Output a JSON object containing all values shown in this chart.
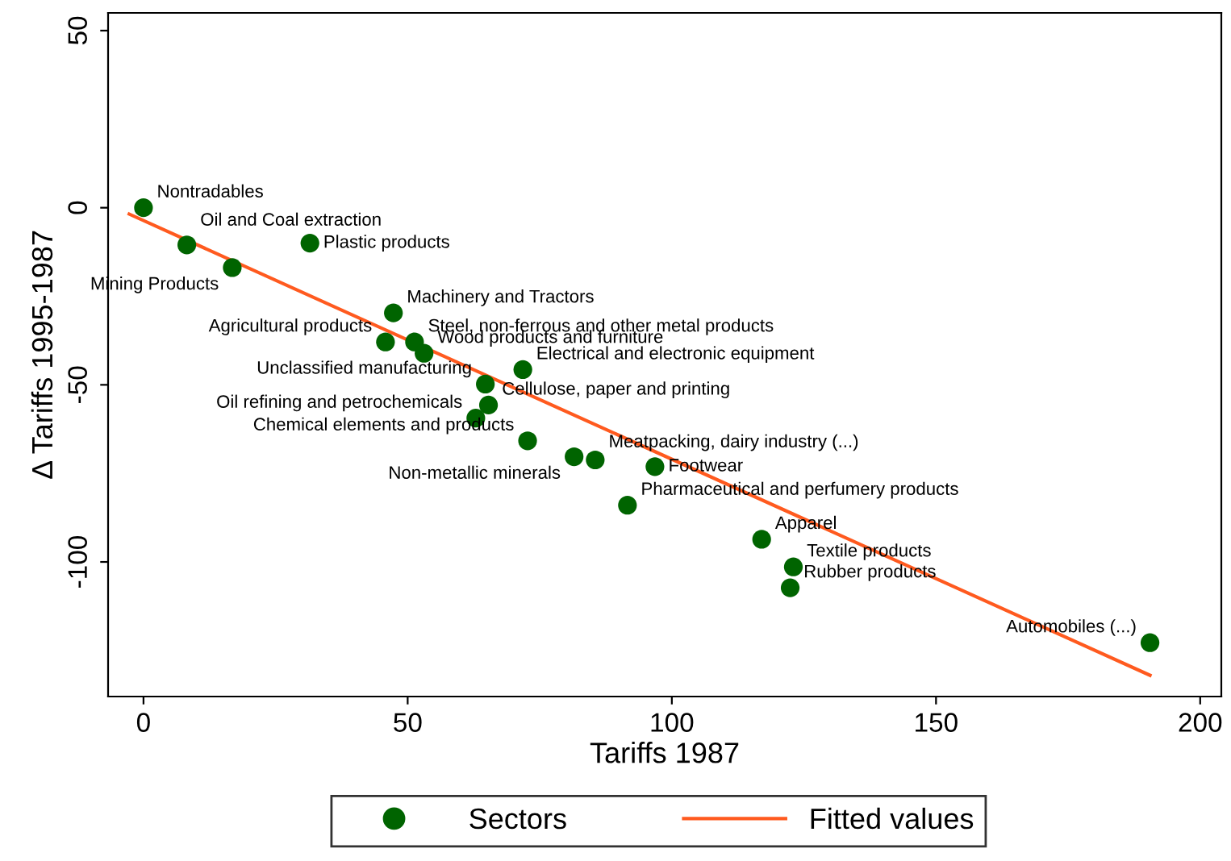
{
  "chart_data": {
    "type": "scatter",
    "xlabel": "Tariffs 1987",
    "ylabel": "Δ Tariffs 1995-1987",
    "xlim": [
      -6.7,
      204
    ],
    "ylim": [
      -138,
      55
    ],
    "xticks": [
      0,
      50,
      100,
      150,
      200
    ],
    "yticks": [
      -100,
      -50,
      0,
      50
    ],
    "grid": false,
    "legend": "bottom",
    "series": [
      {
        "name": "Sectors",
        "marker": "circle",
        "color": "#006400",
        "x": [
          0,
          8.2,
          31.5,
          16.8,
          47.3,
          51.3,
          45.8,
          53.1,
          71.8,
          64.7,
          65.3,
          62.9,
          72.7,
          81.5,
          85.5,
          96.8,
          91.6,
          117,
          123,
          122.4,
          190.5
        ],
        "values": [
          0,
          -10.5,
          -10,
          -16.9,
          -29.7,
          -37.9,
          -37.9,
          -41.1,
          -45.7,
          -49.8,
          -55.7,
          -59.4,
          -65.8,
          -70.3,
          -71.2,
          -73.1,
          -84,
          -93.6,
          -101.4,
          -107.3,
          -122.8
        ]
      },
      {
        "name": "Fitted values",
        "type": "line",
        "color": "#ff5a1f",
        "x": [
          -2.7,
          190.5
        ],
        "values": [
          -1.8,
          -132
        ]
      }
    ],
    "annotations": [
      {
        "text": "Nontradables",
        "x": 0,
        "y": 0
      },
      {
        "text": "Oil and Coal extraction",
        "x": 8.2,
        "y": -10.5
      },
      {
        "text": "Plastic products",
        "x": 31.5,
        "y": -10
      },
      {
        "text": "Mining Products",
        "x": 16.8,
        "y": -16.9
      },
      {
        "text": "Machinery and Tractors",
        "x": 47.3,
        "y": -29.7
      },
      {
        "text": "Steel, non-ferrous and other metal products",
        "x": 51.3,
        "y": -37.9
      },
      {
        "text": "Agricultural products",
        "x": 45.8,
        "y": -37.9
      },
      {
        "text": "Wood products and furniture",
        "x": 53.1,
        "y": -41.1
      },
      {
        "text": "Electrical and electronic equipment",
        "x": 71.8,
        "y": -45.7
      },
      {
        "text": "Unclassified manufacturing",
        "x": 64.7,
        "y": -49.8
      },
      {
        "text": "Cellulose, paper and printing",
        "x": 65.3,
        "y": -55.7
      },
      {
        "text": "Oil refining and petrochemicals",
        "x": 62.9,
        "y": -59.4
      },
      {
        "text": "Chemical elements and products",
        "x": 72.7,
        "y": -65.8
      },
      {
        "text": "Non-metallic minerals",
        "x": 81.5,
        "y": -70.3
      },
      {
        "text": "Meatpacking, dairy industry (...)",
        "x": 85.5,
        "y": -71.2
      },
      {
        "text": "Footwear",
        "x": 96.8,
        "y": -73.1
      },
      {
        "text": "Pharmaceutical and perfumery products",
        "x": 91.6,
        "y": -84
      },
      {
        "text": "Apparel",
        "x": 117,
        "y": -93.6
      },
      {
        "text": "Textile products",
        "x": 123,
        "y": -101.4
      },
      {
        "text": "Rubber products",
        "x": 122.4,
        "y": -107.3
      },
      {
        "text": "Automobiles (...)",
        "x": 190.5,
        "y": -122.8
      }
    ]
  }
}
